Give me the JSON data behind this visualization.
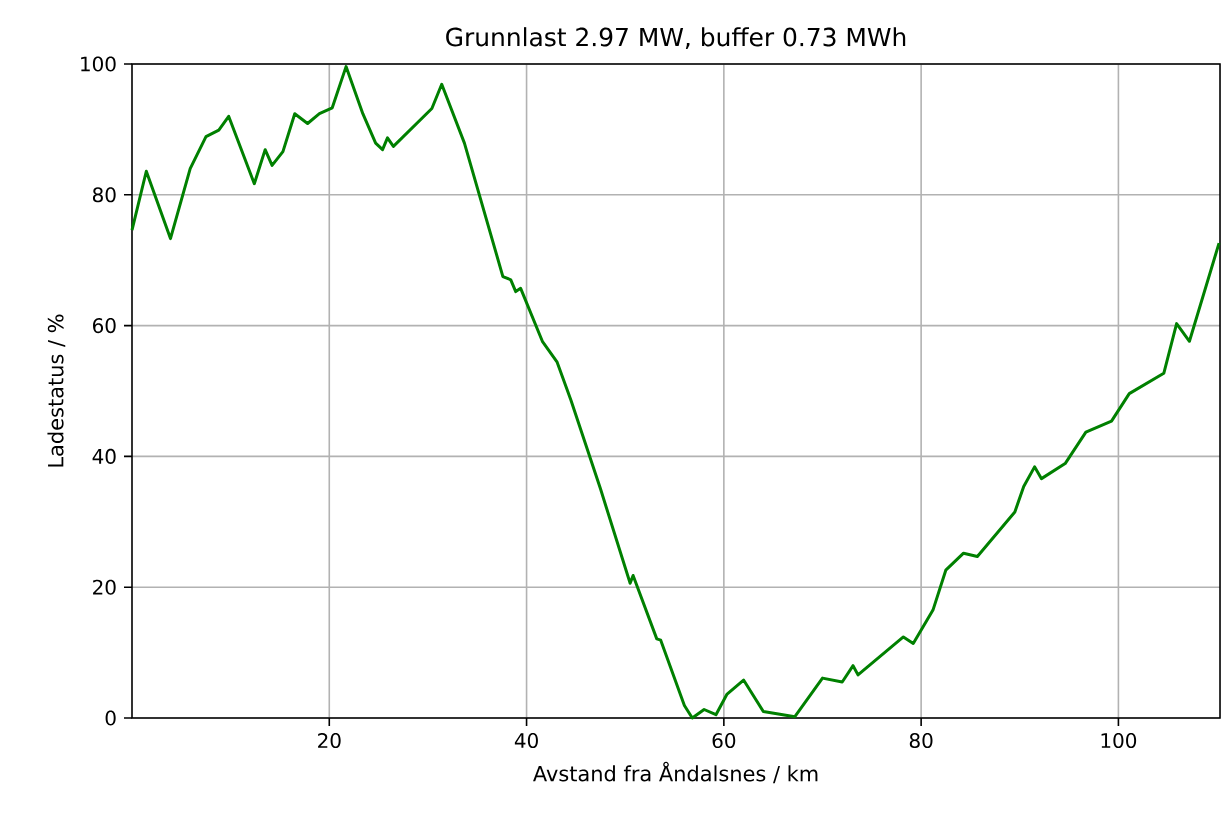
{
  "chart_data": {
    "type": "line",
    "title": "Grunnlast 2.97 MW, buffer 0.73 MWh",
    "xlabel": "Avstand fra Åndalsnes / km",
    "ylabel": "Ladestatus / %",
    "xlim": [
      0,
      110.3
    ],
    "ylim": [
      0,
      100
    ],
    "xticks": [
      20,
      40,
      60,
      80,
      100
    ],
    "yticks": [
      0,
      20,
      40,
      60,
      80,
      100
    ],
    "grid": true,
    "series": [
      {
        "color": "#008000",
        "x": [
          0,
          1.45,
          3.9,
          5.9,
          7.5,
          8.8,
          9.8,
          12.4,
          13.5,
          14.2,
          15.3,
          16.5,
          17.8,
          19,
          20.3,
          21.7,
          23.4,
          24.7,
          25.4,
          25.9,
          26.5,
          30.4,
          31.4,
          33.7,
          37.6,
          38.4,
          38.9,
          39.4,
          41.6,
          43.1,
          44.5,
          47.5,
          50.5,
          50.8,
          53.2,
          53.6,
          56,
          56.8,
          58,
          59.2,
          60.3,
          62,
          64,
          67.2,
          70,
          72,
          73.1,
          73.6,
          78.2,
          79.2,
          81.2,
          82.5,
          84.3,
          85.7,
          89.5,
          90.4,
          91.5,
          92.2,
          94.6,
          96.7,
          99.3,
          101.1,
          104.6,
          105.9,
          107.2,
          110.2
        ],
        "values": [
          74.6,
          83.6,
          73.3,
          84,
          88.9,
          89.9,
          92,
          81.7,
          86.9,
          84.5,
          86.6,
          92.4,
          90.9,
          92.4,
          93.3,
          99.6,
          92.4,
          87.9,
          86.9,
          88.7,
          87.4,
          93.2,
          96.9,
          87.9,
          67.5,
          67,
          65.2,
          65.7,
          57.6,
          54.4,
          48.6,
          35,
          20.6,
          21.8,
          12.1,
          11.9,
          1.9,
          0,
          1.3,
          0.5,
          3.6,
          5.8,
          1,
          0.2,
          6.1,
          5.5,
          8,
          6.6,
          12.4,
          11.4,
          16.5,
          22.6,
          25.2,
          24.7,
          31.5,
          35.4,
          38.4,
          36.6,
          38.9,
          43.7,
          45.4,
          49.6,
          52.7,
          60.3,
          57.6,
          72.6
        ]
      }
    ]
  }
}
